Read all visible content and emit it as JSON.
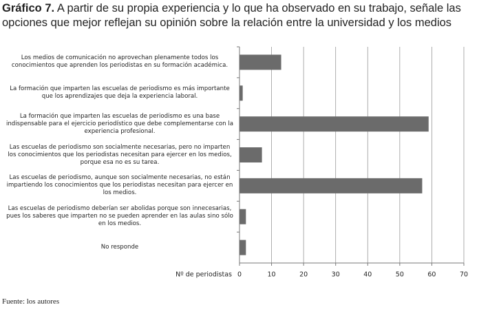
{
  "chart_data": {
    "type": "bar",
    "orientation": "horizontal",
    "label": "Gráfico 7.",
    "title": "A partir de su propia experiencia y lo que ha observado en su trabajo, señale las opciones que mejor reflejan su opinión sobre la relación entre la universidad y los medios",
    "categories": [
      "Los medios de comunicación no aprovechan plenamente todos los conocimientos que aprenden los periodistas en su formación académica.",
      "La formación que imparten las escuelas de periodismo es más importante que los aprendizajes que deja la experiencia laboral.",
      "La formación que imparten las escuelas de periodismo es una base indispensable para el ejercicio periodístico que debe complementarse con la experiencia profesional.",
      "Las escuelas de periodismo son socialmente necesarias, pero no imparten los conocimientos que los periodistas necesitan para ejercer en los medios, porque esa no es su tarea.",
      "Las escuelas de periodismo, aunque son socialmente necesarias, no están impartiendo los conocimientos que los periodistas necesitan para ejercer en los medios.",
      "Las escuelas de periodismo deberían ser abolidas porque son innecesarias, pues los saberes que imparten no se pueden aprender en las aulas sino sólo en los medios.",
      "No responde"
    ],
    "values": [
      13,
      1,
      59,
      7,
      57,
      2,
      2
    ],
    "color": "#6b6b6b",
    "xlabel": "Nº de periodistas",
    "xlim": [
      0,
      70
    ],
    "xticks": [
      0,
      10,
      20,
      30,
      40,
      50,
      60,
      70
    ],
    "grid": true,
    "source": "Fuente: los autores"
  }
}
